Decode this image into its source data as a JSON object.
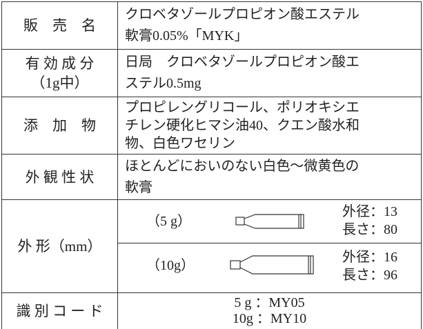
{
  "table": {
    "rows": [
      {
        "label": [
          "販　売　名"
        ],
        "value": [
          "クロベタゾールプロピオン酸エステル",
          "軟膏0.05%「MYK」"
        ]
      },
      {
        "label": [
          "有 効 成 分",
          "（1g中）"
        ],
        "value": [
          "日局　クロベタゾールプロピオン酸エ",
          "ステル0.5mg"
        ]
      },
      {
        "label": [
          "添　加　物"
        ],
        "value": [
          "プロピレングリコール、ポリオキシエ",
          "チレン硬化ヒマシ油40、クエン酸水和",
          "物、白色ワセリン"
        ]
      },
      {
        "label": [
          "外 観 性 状"
        ],
        "value": [
          "ほとんどにおいのない白色～微黄色の",
          "軟膏"
        ]
      },
      {
        "label": [
          "外 形（mm）"
        ],
        "shapes": [
          {
            "size": "（5 g）",
            "dims": [
              "外径：13",
              "長さ：80"
            ]
          },
          {
            "size": "（10g）",
            "dims": [
              "外径：16",
              "長さ：96"
            ]
          }
        ]
      },
      {
        "label": [
          "識 別 コ ー ド"
        ],
        "value": [
          "5 g ：MY05",
          "10g ：MY10"
        ]
      }
    ]
  }
}
